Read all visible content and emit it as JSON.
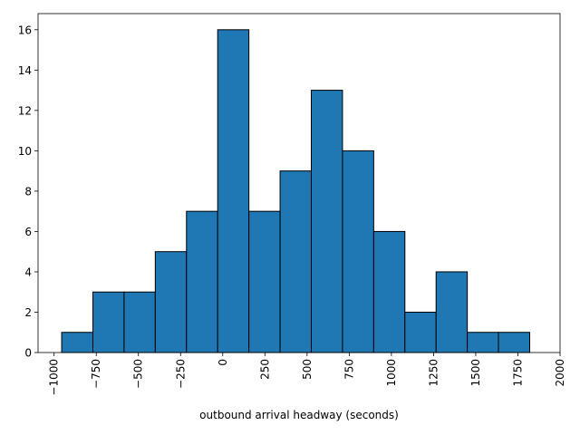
{
  "chart_data": {
    "type": "bar",
    "title": "",
    "xlabel": "outbound arrival headway (seconds)",
    "ylabel": "",
    "xlim": [
      -1095,
      2000
    ],
    "ylim": [
      0,
      16.8
    ],
    "grid": false,
    "legend": "none",
    "bar_color": "#1f77b4",
    "edge_color": "#000000",
    "bins": [
      {
        "start": -955,
        "end": -770,
        "count": 1
      },
      {
        "start": -770,
        "end": -585,
        "count": 3
      },
      {
        "start": -585,
        "end": -400,
        "count": 3
      },
      {
        "start": -400,
        "end": -215,
        "count": 5
      },
      {
        "start": -215,
        "end": -30,
        "count": 7
      },
      {
        "start": -30,
        "end": 155,
        "count": 16
      },
      {
        "start": 155,
        "end": 340,
        "count": 7
      },
      {
        "start": 340,
        "end": 525,
        "count": 9
      },
      {
        "start": 525,
        "end": 710,
        "count": 13
      },
      {
        "start": 710,
        "end": 895,
        "count": 10
      },
      {
        "start": 895,
        "end": 1080,
        "count": 6
      },
      {
        "start": 1080,
        "end": 1265,
        "count": 2
      },
      {
        "start": 1265,
        "end": 1450,
        "count": 4
      },
      {
        "start": 1450,
        "end": 1635,
        "count": 1
      },
      {
        "start": 1635,
        "end": 1820,
        "count": 1
      }
    ],
    "x_ticks": [
      {
        "value": -1000,
        "label": "−1000"
      },
      {
        "value": -750,
        "label": "−750"
      },
      {
        "value": -500,
        "label": "−500"
      },
      {
        "value": -250,
        "label": "−250"
      },
      {
        "value": 0,
        "label": "0"
      },
      {
        "value": 250,
        "label": "250"
      },
      {
        "value": 500,
        "label": "500"
      },
      {
        "value": 750,
        "label": "750"
      },
      {
        "value": 1000,
        "label": "1000"
      },
      {
        "value": 1250,
        "label": "1250"
      },
      {
        "value": 1500,
        "label": "1500"
      },
      {
        "value": 1750,
        "label": "1750"
      },
      {
        "value": 2000,
        "label": "2000"
      }
    ],
    "y_ticks": [
      {
        "value": 0,
        "label": "0"
      },
      {
        "value": 2,
        "label": "2"
      },
      {
        "value": 4,
        "label": "4"
      },
      {
        "value": 6,
        "label": "6"
      },
      {
        "value": 8,
        "label": "8"
      },
      {
        "value": 10,
        "label": "10"
      },
      {
        "value": 12,
        "label": "12"
      },
      {
        "value": 14,
        "label": "14"
      },
      {
        "value": 16,
        "label": "16"
      }
    ]
  }
}
